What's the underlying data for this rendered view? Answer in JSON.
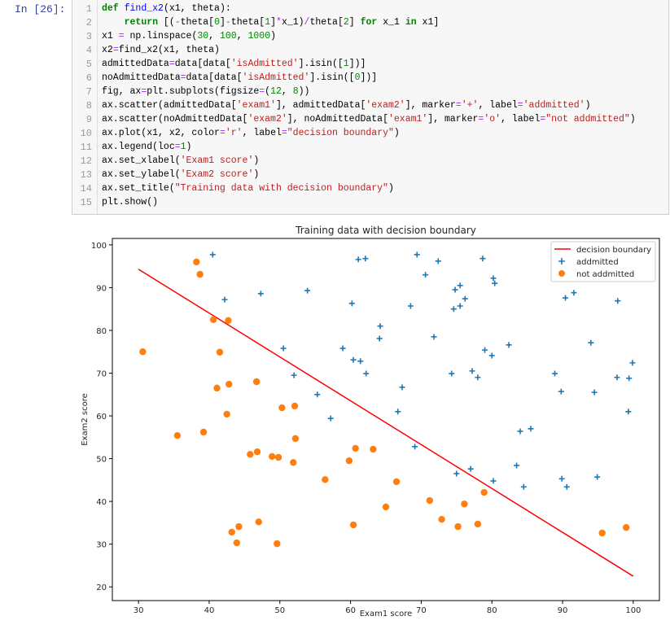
{
  "cell": {
    "prompt": "In  [26]:",
    "lines": [
      [
        {
          "t": "def",
          "k": "kw"
        },
        {
          "t": " "
        },
        {
          "t": "find_x2",
          "k": "def"
        },
        {
          "t": "(x1, theta):"
        }
      ],
      [
        {
          "t": "    "
        },
        {
          "t": "return",
          "k": "kw"
        },
        {
          "t": " [("
        },
        {
          "t": "-",
          "k": "op"
        },
        {
          "t": "theta["
        },
        {
          "t": "0",
          "k": "num"
        },
        {
          "t": "]"
        },
        {
          "t": "-",
          "k": "op"
        },
        {
          "t": "theta["
        },
        {
          "t": "1",
          "k": "num"
        },
        {
          "t": "]"
        },
        {
          "t": "*",
          "k": "op"
        },
        {
          "t": "x_1)"
        },
        {
          "t": "/",
          "k": "op"
        },
        {
          "t": "theta["
        },
        {
          "t": "2",
          "k": "num"
        },
        {
          "t": "] "
        },
        {
          "t": "for",
          "k": "kw"
        },
        {
          "t": " x_1 "
        },
        {
          "t": "in",
          "k": "kw"
        },
        {
          "t": " x1]"
        }
      ],
      [
        {
          "t": "x1 "
        },
        {
          "t": "=",
          "k": "op"
        },
        {
          "t": " np.linspace("
        },
        {
          "t": "30",
          "k": "num"
        },
        {
          "t": ", "
        },
        {
          "t": "100",
          "k": "num"
        },
        {
          "t": ", "
        },
        {
          "t": "1000",
          "k": "num"
        },
        {
          "t": ")"
        }
      ],
      [
        {
          "t": "x2"
        },
        {
          "t": "=",
          "k": "op"
        },
        {
          "t": "find_x2(x1, theta)"
        }
      ],
      [
        {
          "t": "admittedData"
        },
        {
          "t": "=",
          "k": "op"
        },
        {
          "t": "data[data["
        },
        {
          "t": "'isAdmitted'",
          "k": "str"
        },
        {
          "t": "].isin(["
        },
        {
          "t": "1",
          "k": "num"
        },
        {
          "t": "])]"
        }
      ],
      [
        {
          "t": "noAdmittedData"
        },
        {
          "t": "=",
          "k": "op"
        },
        {
          "t": "data[data["
        },
        {
          "t": "'isAdmitted'",
          "k": "str"
        },
        {
          "t": "].isin(["
        },
        {
          "t": "0",
          "k": "num"
        },
        {
          "t": "])]"
        }
      ],
      [
        {
          "t": "fig, ax"
        },
        {
          "t": "=",
          "k": "op"
        },
        {
          "t": "plt.subplots(figsize"
        },
        {
          "t": "=",
          "k": "op"
        },
        {
          "t": "("
        },
        {
          "t": "12",
          "k": "num"
        },
        {
          "t": ", "
        },
        {
          "t": "8",
          "k": "num"
        },
        {
          "t": "))"
        }
      ],
      [
        {
          "t": "ax.scatter(admittedData["
        },
        {
          "t": "'exam1'",
          "k": "str"
        },
        {
          "t": "], admittedData["
        },
        {
          "t": "'exam2'",
          "k": "str"
        },
        {
          "t": "], marker"
        },
        {
          "t": "=",
          "k": "op"
        },
        {
          "t": "'+'",
          "k": "str"
        },
        {
          "t": ", label"
        },
        {
          "t": "=",
          "k": "op"
        },
        {
          "t": "'addmitted'",
          "k": "str"
        },
        {
          "t": ")"
        }
      ],
      [
        {
          "t": "ax.scatter(noAdmittedData["
        },
        {
          "t": "'exam2'",
          "k": "str"
        },
        {
          "t": "], noAdmittedData["
        },
        {
          "t": "'exam1'",
          "k": "str"
        },
        {
          "t": "], marker"
        },
        {
          "t": "=",
          "k": "op"
        },
        {
          "t": "'o'",
          "k": "str"
        },
        {
          "t": ", label"
        },
        {
          "t": "=",
          "k": "op"
        },
        {
          "t": "\"not addmitted\"",
          "k": "str"
        },
        {
          "t": ")"
        }
      ],
      [
        {
          "t": "ax.plot(x1, x2, color"
        },
        {
          "t": "=",
          "k": "op"
        },
        {
          "t": "'r'",
          "k": "str"
        },
        {
          "t": ", label"
        },
        {
          "t": "=",
          "k": "op"
        },
        {
          "t": "\"decision boundary\"",
          "k": "str"
        },
        {
          "t": ")"
        }
      ],
      [
        {
          "t": "ax.legend(loc"
        },
        {
          "t": "=",
          "k": "op"
        },
        {
          "t": "1",
          "k": "num"
        },
        {
          "t": ")"
        }
      ],
      [
        {
          "t": "ax.set_xlabel("
        },
        {
          "t": "'Exam1 score'",
          "k": "str"
        },
        {
          "t": ")"
        }
      ],
      [
        {
          "t": "ax.set_ylabel("
        },
        {
          "t": "'Exam2 score'",
          "k": "str"
        },
        {
          "t": ")"
        }
      ],
      [
        {
          "t": "ax.set_title("
        },
        {
          "t": "\"Training data with decision boundary\"",
          "k": "str"
        },
        {
          "t": ")"
        }
      ],
      [
        {
          "t": "plt.show()"
        }
      ]
    ]
  },
  "chart_data": {
    "type": "scatter",
    "title": "Training data with decision boundary",
    "xlabel": "Exam1 score",
    "ylabel": "Exam2 score",
    "xlim": [
      26.3,
      103.7
    ],
    "ylim": [
      16.8,
      101.5
    ],
    "xticks": [
      30,
      40,
      50,
      60,
      70,
      80,
      90,
      100
    ],
    "yticks": [
      20,
      30,
      40,
      50,
      60,
      70,
      80,
      90,
      100
    ],
    "grid": false,
    "legend_placement": "top-right",
    "colors": {
      "boundary": "#ff0000",
      "admitted": "#1f77b4",
      "not_admitted": "#ff7f0e"
    },
    "line": {
      "name": "decision boundary",
      "x": [
        30,
        100
      ],
      "y": [
        94.3,
        22.5
      ]
    },
    "series": [
      {
        "name": "addmitted",
        "marker": "+",
        "points": [
          [
            40.5,
            97.7
          ],
          [
            42.2,
            87.2
          ],
          [
            47.3,
            88.6
          ],
          [
            53.9,
            89.3
          ],
          [
            60.2,
            86.3
          ],
          [
            61.1,
            96.6
          ],
          [
            62.1,
            96.8
          ],
          [
            50.5,
            75.8
          ],
          [
            52.0,
            69.5
          ],
          [
            55.3,
            65.0
          ],
          [
            57.2,
            59.4
          ],
          [
            58.9,
            75.8
          ],
          [
            60.4,
            73.1
          ],
          [
            61.4,
            72.8
          ],
          [
            62.2,
            69.9
          ],
          [
            64.2,
            81.0
          ],
          [
            64.1,
            78.1
          ],
          [
            69.4,
            97.7
          ],
          [
            72.4,
            96.2
          ],
          [
            78.7,
            96.8
          ],
          [
            70.6,
            93.0
          ],
          [
            80.2,
            92.2
          ],
          [
            80.4,
            91.0
          ],
          [
            75.5,
            90.5
          ],
          [
            74.8,
            89.5
          ],
          [
            76.2,
            87.4
          ],
          [
            68.5,
            85.7
          ],
          [
            75.5,
            85.7
          ],
          [
            74.6,
            85.0
          ],
          [
            71.8,
            78.5
          ],
          [
            90.4,
            87.6
          ],
          [
            91.6,
            88.8
          ],
          [
            97.8,
            86.9
          ],
          [
            94.0,
            77.1
          ],
          [
            79.0,
            75.4
          ],
          [
            80.0,
            74.1
          ],
          [
            82.4,
            76.6
          ],
          [
            99.9,
            72.4
          ],
          [
            74.3,
            69.9
          ],
          [
            77.2,
            70.5
          ],
          [
            78.0,
            69.0
          ],
          [
            88.9,
            69.9
          ],
          [
            97.7,
            69.0
          ],
          [
            99.4,
            68.8
          ],
          [
            67.3,
            66.7
          ],
          [
            89.8,
            65.7
          ],
          [
            94.5,
            65.5
          ],
          [
            99.3,
            61.0
          ],
          [
            66.7,
            61.0
          ],
          [
            84.0,
            56.4
          ],
          [
            85.5,
            57.0
          ],
          [
            69.1,
            52.8
          ],
          [
            83.5,
            48.4
          ],
          [
            75.0,
            46.5
          ],
          [
            77.0,
            47.6
          ],
          [
            80.2,
            44.8
          ],
          [
            84.5,
            43.4
          ],
          [
            89.9,
            45.3
          ],
          [
            90.6,
            43.4
          ],
          [
            94.9,
            45.7
          ]
        ]
      },
      {
        "name": "not addmitted",
        "marker": "o",
        "points": [
          [
            38.2,
            96.0
          ],
          [
            38.7,
            93.1
          ],
          [
            40.6,
            82.5
          ],
          [
            42.7,
            82.3
          ],
          [
            30.6,
            75.0
          ],
          [
            41.5,
            74.9
          ],
          [
            41.1,
            66.5
          ],
          [
            42.8,
            67.4
          ],
          [
            46.7,
            68.0
          ],
          [
            50.3,
            61.9
          ],
          [
            52.1,
            62.3
          ],
          [
            42.5,
            60.4
          ],
          [
            35.5,
            55.4
          ],
          [
            39.2,
            56.2
          ],
          [
            45.8,
            51.0
          ],
          [
            46.8,
            51.6
          ],
          [
            48.9,
            50.5
          ],
          [
            49.8,
            50.3
          ],
          [
            51.9,
            49.1
          ],
          [
            52.2,
            54.7
          ],
          [
            56.4,
            45.1
          ],
          [
            60.7,
            52.4
          ],
          [
            59.8,
            49.5
          ],
          [
            63.2,
            52.2
          ],
          [
            65.0,
            38.7
          ],
          [
            47.0,
            35.2
          ],
          [
            44.2,
            34.1
          ],
          [
            43.2,
            32.8
          ],
          [
            43.9,
            30.3
          ],
          [
            49.6,
            30.1
          ],
          [
            60.4,
            34.5
          ],
          [
            66.5,
            44.6
          ],
          [
            71.2,
            40.2
          ],
          [
            72.9,
            35.8
          ],
          [
            75.2,
            34.1
          ],
          [
            76.1,
            39.4
          ],
          [
            78.0,
            34.7
          ],
          [
            78.9,
            42.1
          ],
          [
            95.6,
            32.6
          ],
          [
            99.0,
            33.9
          ]
        ]
      }
    ]
  }
}
